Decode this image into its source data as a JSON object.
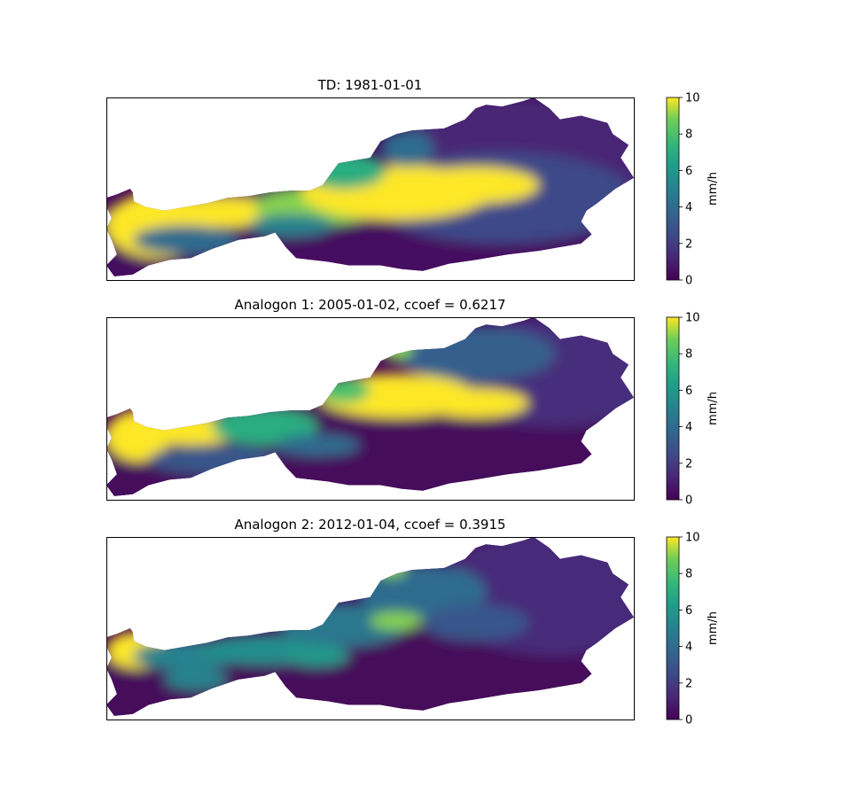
{
  "chart_data": [
    {
      "type": "heatmap",
      "title": "TD: 1981-01-01",
      "xlabel": "",
      "ylabel": "",
      "colorbar": {
        "label": "mm/h",
        "range": [
          0,
          10
        ],
        "ticks": [
          "0",
          "2",
          "4",
          "6",
          "8",
          "10"
        ],
        "colormap": "viridis"
      },
      "description_values": {
        "west_precip_level": 10,
        "central_band_level": 10,
        "south_level": 0.5,
        "northeast_level": 1.5
      }
    },
    {
      "type": "heatmap",
      "title": "Analogon 1: 2005-01-02, ccoef = 0.6217",
      "xlabel": "",
      "ylabel": "",
      "colorbar": {
        "label": "mm/h",
        "range": [
          0,
          10
        ],
        "ticks": [
          "0",
          "2",
          "4",
          "6",
          "8",
          "10"
        ],
        "colormap": "viridis"
      },
      "description_values": {
        "west_precip_level": 10,
        "central_band_level": 10,
        "south_level": 0.3,
        "northeast_level": 1.5
      }
    },
    {
      "type": "heatmap",
      "title": "Analogon 2: 2012-01-04, ccoef = 0.3915",
      "xlabel": "",
      "ylabel": "",
      "colorbar": {
        "label": "mm/h",
        "range": [
          0,
          10
        ],
        "ticks": [
          "0",
          "2",
          "4",
          "6",
          "8",
          "10"
        ],
        "colormap": "viridis"
      },
      "description_values": {
        "west_precip_level": 9,
        "central_band_level": 5,
        "south_level": 0.2,
        "northeast_level": 1.2
      }
    }
  ],
  "colors": {
    "viridis_0": "#440154",
    "viridis_2": "#3b528b",
    "viridis_4": "#31688e",
    "viridis_6": "#21918c",
    "viridis_8": "#5ec962",
    "viridis_10": "#fde725"
  }
}
